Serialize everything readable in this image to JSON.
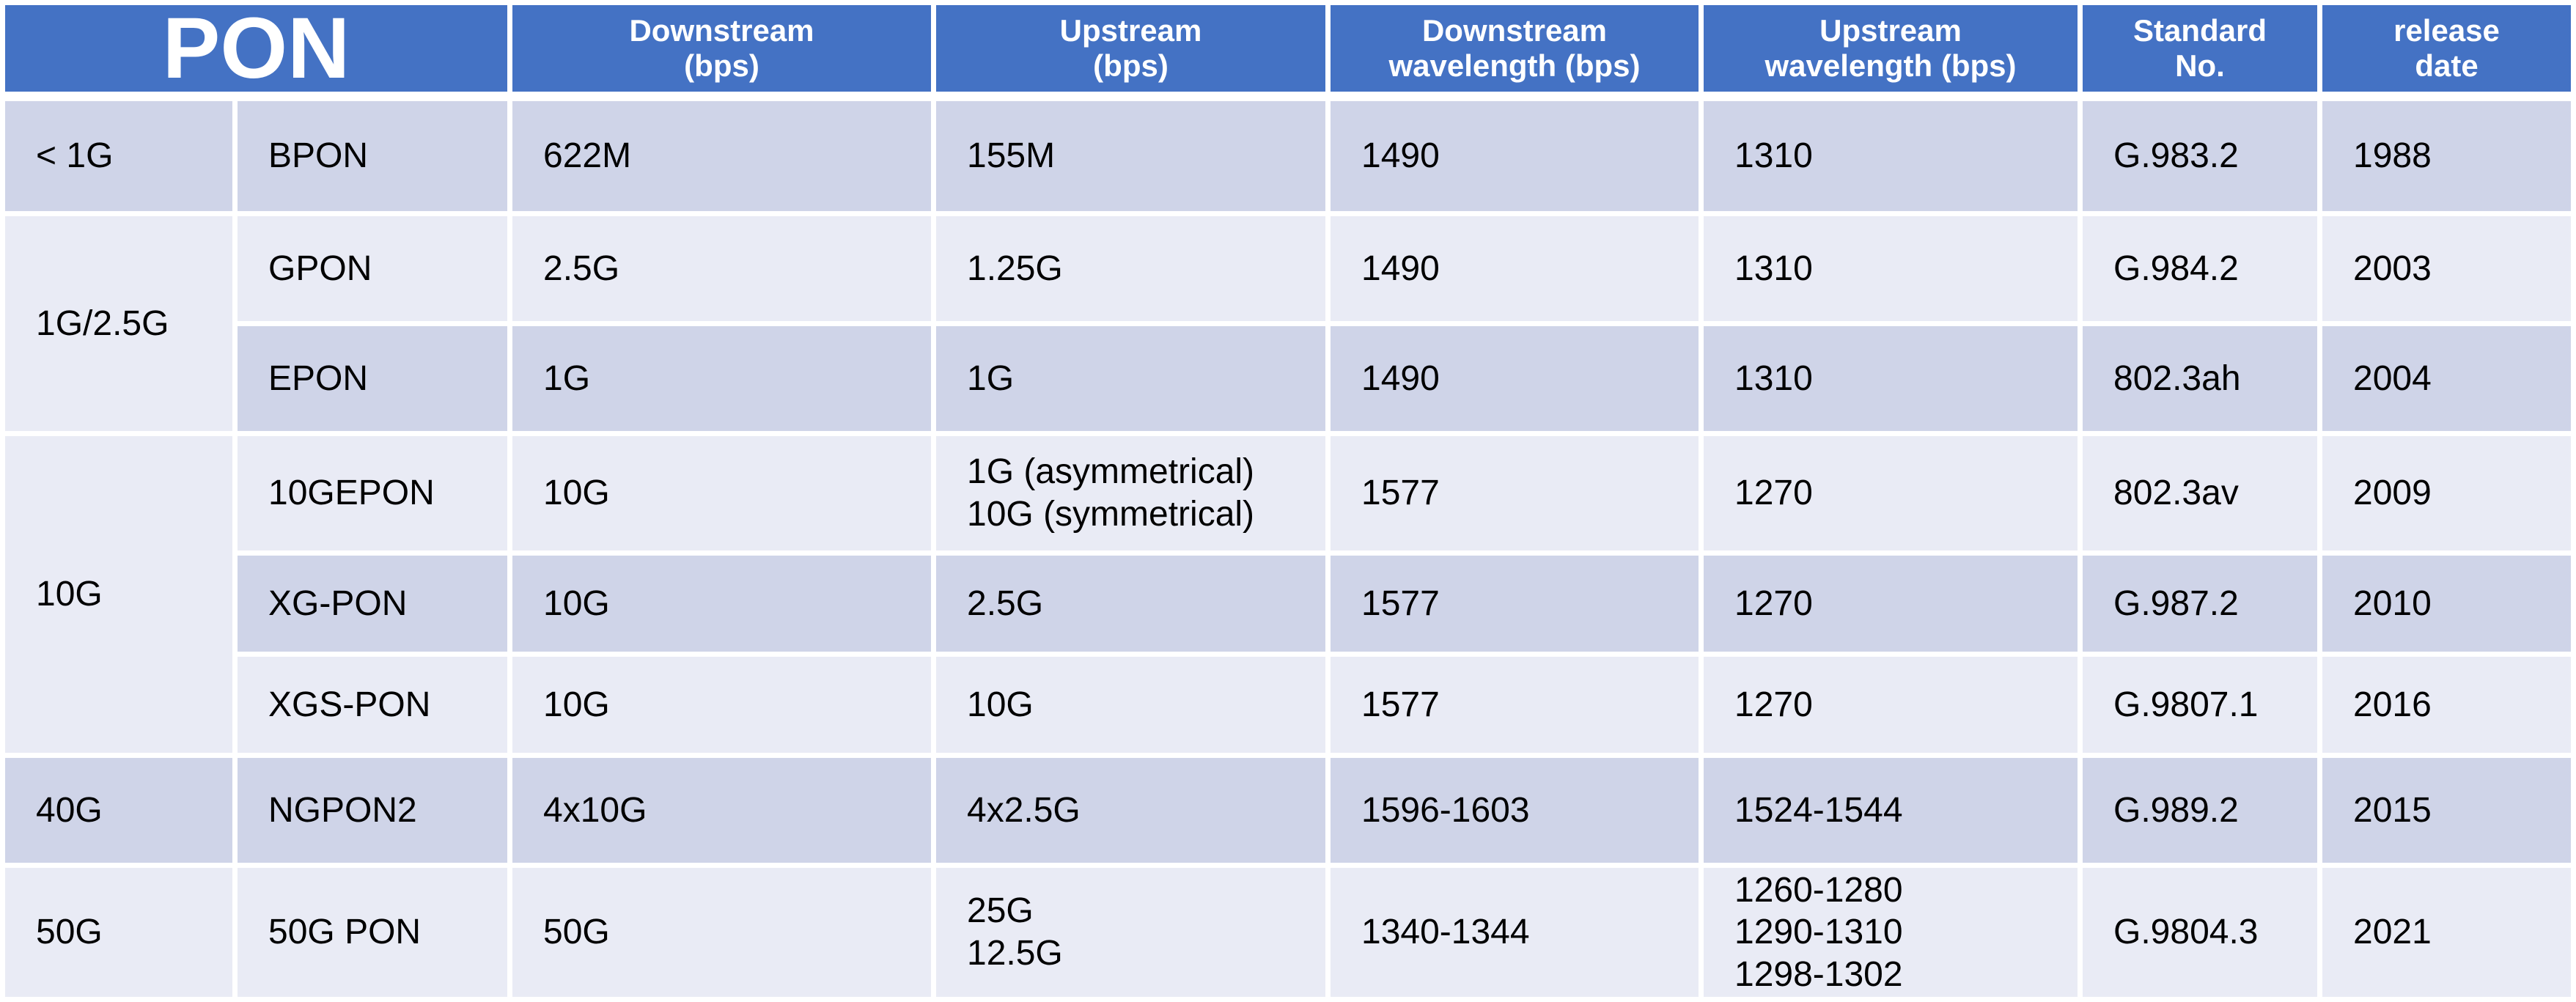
{
  "colors": {
    "header_bg": "#4472C4",
    "header_text": "#FFFFFF",
    "band_dark": "#CFD4E8",
    "band_light": "#E9EBF5",
    "body_text": "#000000"
  },
  "header": {
    "pon": "PON",
    "downstream_bps": "Downstream\n(bps)",
    "upstream_bps": "Upstream\n(bps)",
    "downstream_wavelength": "Downstream\nwavelength (bps)",
    "upstream_wavelength": "Upstream\nwavelength (bps)",
    "standard_no": "Standard\nNo.",
    "release_date": "release\ndate"
  },
  "groups": [
    {
      "speed": "< 1G",
      "rows": [
        {
          "name": "BPON",
          "downstream": "622M",
          "upstream": "155M",
          "downstream_wavelength": "1490",
          "upstream_wavelength": "1310",
          "standard": "G.983.2",
          "release": "1988"
        }
      ]
    },
    {
      "speed": "1G/2.5G",
      "rows": [
        {
          "name": "GPON",
          "downstream": "2.5G",
          "upstream": "1.25G",
          "downstream_wavelength": "1490",
          "upstream_wavelength": "1310",
          "standard": "G.984.2",
          "release": "2003"
        },
        {
          "name": "EPON",
          "downstream": "1G",
          "upstream": "1G",
          "downstream_wavelength": "1490",
          "upstream_wavelength": "1310",
          "standard": "802.3ah",
          "release": "2004"
        }
      ]
    },
    {
      "speed": "10G",
      "rows": [
        {
          "name": "10GEPON",
          "downstream": "10G",
          "upstream": "1G (asymmetrical)\n10G  (symmetrical)",
          "downstream_wavelength": "1577",
          "upstream_wavelength": "1270",
          "standard": "802.3av",
          "release": "2009"
        },
        {
          "name": "XG-PON",
          "downstream": "10G",
          "upstream": "2.5G",
          "downstream_wavelength": "1577",
          "upstream_wavelength": "1270",
          "standard": "G.987.2",
          "release": "2010"
        },
        {
          "name": "XGS-PON",
          "downstream": "10G",
          "upstream": "10G",
          "downstream_wavelength": "1577",
          "upstream_wavelength": "1270",
          "standard": "G.9807.1",
          "release": "2016"
        }
      ]
    },
    {
      "speed": "40G",
      "rows": [
        {
          "name": "NGPON2",
          "downstream": "4x10G",
          "upstream": "4x2.5G",
          "downstream_wavelength": "1596-1603",
          "upstream_wavelength": "1524-1544",
          "standard": "G.989.2",
          "release": "2015"
        }
      ]
    },
    {
      "speed": "50G",
      "rows": [
        {
          "name": "50G PON",
          "downstream": "50G",
          "upstream": "25G\n12.5G",
          "downstream_wavelength": "1340-1344",
          "upstream_wavelength": "1260-1280\n1290-1310\n1298-1302",
          "standard": "G.9804.3",
          "release": "2021"
        }
      ]
    }
  ]
}
